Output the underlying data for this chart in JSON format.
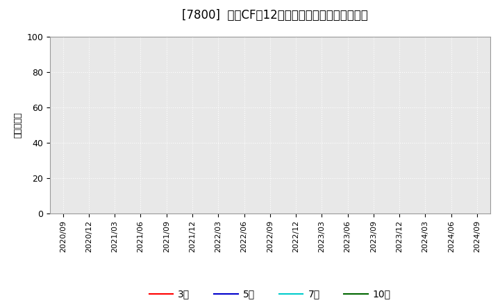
{
  "title": "[7800]  投資CFの12か月移動合計の平均値の推移",
  "ylabel": "（百万円）",
  "ylim": [
    0,
    100
  ],
  "yticks": [
    0,
    20,
    40,
    60,
    80,
    100
  ],
  "x_labels": [
    "2020/09",
    "2020/12",
    "2021/03",
    "2021/06",
    "2021/09",
    "2021/12",
    "2022/03",
    "2022/06",
    "2022/09",
    "2022/12",
    "2023/03",
    "2023/06",
    "2023/09",
    "2023/12",
    "2024/03",
    "2024/06",
    "2024/09"
  ],
  "series": {
    "3年": {
      "color": "#ff0000",
      "linewidth": 1.5,
      "values": []
    },
    "5年": {
      "color": "#0000cc",
      "linewidth": 1.5,
      "values": []
    },
    "7年": {
      "color": "#00cccc",
      "linewidth": 1.5,
      "values": []
    },
    "10年": {
      "color": "#006600",
      "linewidth": 1.5,
      "values": []
    }
  },
  "legend_order": [
    "3年",
    "5年",
    "7年",
    "10年"
  ],
  "fig_bg_color": "#ffffff",
  "plot_bg_color": "#e8e8e8",
  "grid_color": "#ffffff",
  "spine_color": "#999999",
  "title_fontsize": 12,
  "axis_fontsize": 9,
  "ylabel_fontsize": 9,
  "legend_fontsize": 10
}
